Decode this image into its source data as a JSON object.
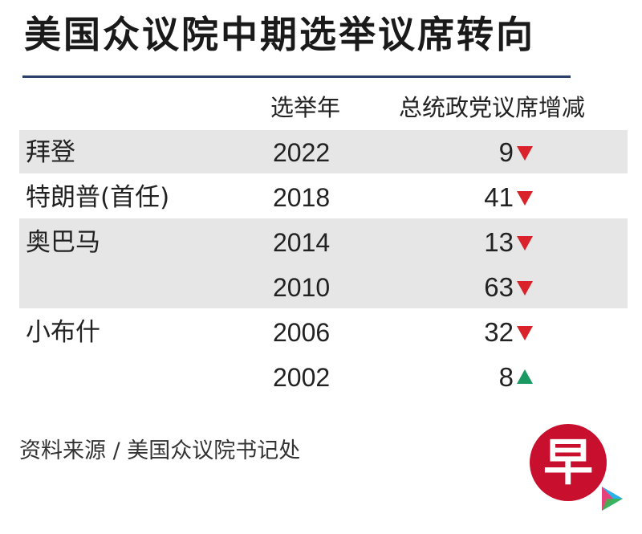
{
  "title": "美国众议院中期选举议席转向",
  "columns": {
    "year": "选举年",
    "change": "总统政党议席增减"
  },
  "rows": [
    {
      "president": "拜登",
      "year": "2022",
      "change": "9",
      "direction": "down"
    },
    {
      "president": "特朗普(首任)",
      "year": "2018",
      "change": "41",
      "direction": "down"
    },
    {
      "president": "奥巴马",
      "year": "2014",
      "change": "13",
      "direction": "down"
    },
    {
      "president": "",
      "year": "2010",
      "change": "63",
      "direction": "down"
    },
    {
      "president": "小布什",
      "year": "2006",
      "change": "32",
      "direction": "down"
    },
    {
      "president": "",
      "year": "2002",
      "change": "8",
      "direction": "up"
    }
  ],
  "source": "资料来源 / 美国众议院书记处",
  "logo_text": "早",
  "colors": {
    "down_arrow": "#d9222a",
    "up_arrow": "#1a9a62",
    "title_rule": "#2c3e6b",
    "band": "#e6e6e6",
    "logo": "#c8102e"
  },
  "chart_data": {
    "type": "table",
    "title": "美国众议院中期选举议席转向",
    "columns": [
      "",
      "选举年",
      "总统政党议席增减"
    ],
    "rows": [
      [
        "拜登",
        "2022",
        -9
      ],
      [
        "特朗普(首任)",
        "2018",
        -41
      ],
      [
        "奥巴马",
        "2014",
        -13
      ],
      [
        "奥巴马",
        "2010",
        -63
      ],
      [
        "小布什",
        "2006",
        -32
      ],
      [
        "小布什",
        "2002",
        8
      ]
    ],
    "source": "资料来源 / 美国众议院书记处"
  }
}
